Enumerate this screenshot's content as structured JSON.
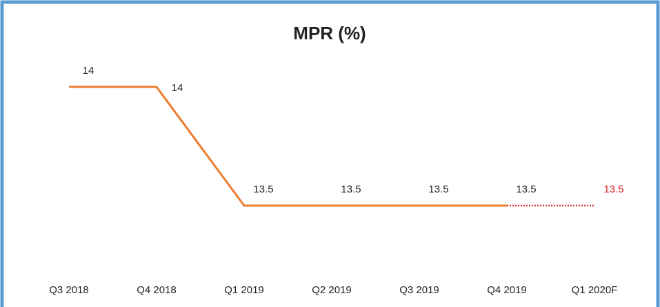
{
  "chart_data": {
    "type": "line",
    "title": "MPR (%)",
    "categories": [
      "Q3 2018",
      "Q4 2018",
      "Q1 2019",
      "Q2 2019",
      "Q3 2019",
      "Q4 2019",
      "Q1 2020F"
    ],
    "series": [
      {
        "color": "#ed7d31",
        "label_color": "#222222",
        "dash": "solid",
        "values": [
          14,
          14,
          13.5,
          13.5,
          13.5,
          13.5,
          null
        ]
      },
      {
        "color": "#e03030",
        "label_color": "#e02020",
        "dash": "dotted",
        "values": [
          null,
          null,
          null,
          null,
          null,
          13.5,
          13.5
        ]
      }
    ],
    "ylim": [
      13.2,
      14.2
    ],
    "grid": false
  }
}
